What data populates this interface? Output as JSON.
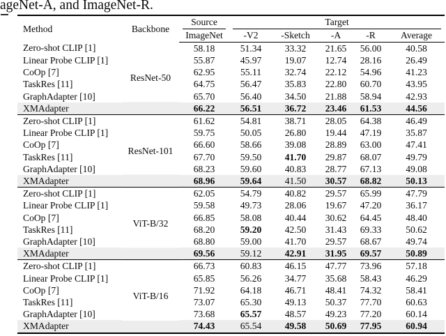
{
  "caption": "ageNet-A, and ImageNet-R.",
  "table": {
    "highlight_color": "#ededed",
    "headers": {
      "method": "Method",
      "backbone": "Backbone",
      "source": "Source",
      "target": "Target",
      "source_sub": [
        "ImageNet"
      ],
      "target_sub": [
        "-V2",
        "-Sketch",
        "-A",
        "-R",
        "Average"
      ]
    },
    "groups": [
      {
        "backbone": "ResNet-50",
        "rows": [
          {
            "method": "Zero-shot CLIP [1]",
            "values": [
              "58.18",
              "51.34",
              "33.32",
              "21.65",
              "56.00",
              "40.58"
            ],
            "bold": [
              false,
              false,
              false,
              false,
              false,
              false
            ],
            "highlight": false
          },
          {
            "method": "Linear Probe CLIP [1]",
            "values": [
              "55.87",
              "45.97",
              "19.07",
              "12.74",
              "28.16",
              "26.49"
            ],
            "bold": [
              false,
              false,
              false,
              false,
              false,
              false
            ],
            "highlight": false
          },
          {
            "method": "CoOp [7]",
            "values": [
              "62.95",
              "55.11",
              "32.74",
              "22.12",
              "54.96",
              "41.23"
            ],
            "bold": [
              false,
              false,
              false,
              false,
              false,
              false
            ],
            "highlight": false
          },
          {
            "method": "TaskRes [11]",
            "values": [
              "64.75",
              "56.47",
              "35.83",
              "22.80",
              "60.70",
              "43.95"
            ],
            "bold": [
              false,
              false,
              false,
              false,
              false,
              false
            ],
            "highlight": false
          },
          {
            "method": "GraphAdapter [10]",
            "values": [
              "65.70",
              "56.40",
              "34.50",
              "21.88",
              "58.94",
              "42.93"
            ],
            "bold": [
              false,
              false,
              false,
              false,
              false,
              false
            ],
            "highlight": false
          },
          {
            "method": "XMAdapter",
            "values": [
              "66.22",
              "56.51",
              "36.72",
              "23.46",
              "61.53",
              "44.56"
            ],
            "bold": [
              true,
              true,
              true,
              true,
              true,
              true
            ],
            "highlight": true
          }
        ]
      },
      {
        "backbone": "ResNet-101",
        "rows": [
          {
            "method": "Zero-shot CLIP [1]",
            "values": [
              "61.62",
              "54.81",
              "38.71",
              "28.05",
              "64.38",
              "46.49"
            ],
            "bold": [
              false,
              false,
              false,
              false,
              false,
              false
            ],
            "highlight": false
          },
          {
            "method": "Linear Probe CLIP [1]",
            "values": [
              "59.75",
              "50.05",
              "26.80",
              "19.44",
              "47.19",
              "35.87"
            ],
            "bold": [
              false,
              false,
              false,
              false,
              false,
              false
            ],
            "highlight": false
          },
          {
            "method": "CoOp [7]",
            "values": [
              "66.60",
              "58.66",
              "39.08",
              "28.89",
              "63.00",
              "47.41"
            ],
            "bold": [
              false,
              false,
              false,
              false,
              false,
              false
            ],
            "highlight": false
          },
          {
            "method": "TaskRes [11]",
            "values": [
              "67.70",
              "59.50",
              "41.70",
              "29.87",
              "68.07",
              "49.79"
            ],
            "bold": [
              false,
              false,
              true,
              false,
              false,
              false
            ],
            "highlight": false
          },
          {
            "method": "GraphAdapter [10]",
            "values": [
              "68.23",
              "59.60",
              "40.83",
              "28.77",
              "67.13",
              "49.08"
            ],
            "bold": [
              false,
              false,
              false,
              false,
              false,
              false
            ],
            "highlight": false
          },
          {
            "method": "XMAdapter",
            "values": [
              "68.96",
              "59.64",
              "41.50",
              "30.57",
              "68.82",
              "50.13"
            ],
            "bold": [
              true,
              true,
              false,
              true,
              true,
              true
            ],
            "highlight": true
          }
        ]
      },
      {
        "backbone": "ViT-B/32",
        "rows": [
          {
            "method": "Zero-shot CLIP [1]",
            "values": [
              "62.05",
              "54.79",
              "40.82",
              "29.57",
              "65.99",
              "47.79"
            ],
            "bold": [
              false,
              false,
              false,
              false,
              false,
              false
            ],
            "highlight": false
          },
          {
            "method": "Linear Probe CLIP [1]",
            "values": [
              "59.58",
              "49.73",
              "28.06",
              "19.67",
              "47.20",
              "36.17"
            ],
            "bold": [
              false,
              false,
              false,
              false,
              false,
              false
            ],
            "highlight": false
          },
          {
            "method": "CoOp [7]",
            "values": [
              "66.85",
              "58.08",
              "40.44",
              "30.62",
              "64.45",
              "48.40"
            ],
            "bold": [
              false,
              false,
              false,
              false,
              false,
              false
            ],
            "highlight": false
          },
          {
            "method": "TaskRes [11]",
            "values": [
              "68.20",
              "59.20",
              "42.50",
              "31.43",
              "69.33",
              "50.62"
            ],
            "bold": [
              false,
              true,
              false,
              false,
              false,
              false
            ],
            "highlight": false
          },
          {
            "method": "GraphAdapter [10]",
            "values": [
              "68.80",
              "59.00",
              "41.70",
              "29.57",
              "68.67",
              "49.74"
            ],
            "bold": [
              false,
              false,
              false,
              false,
              false,
              false
            ],
            "highlight": false
          },
          {
            "method": "XMAdapter",
            "values": [
              "69.56",
              "59.12",
              "42.91",
              "31.95",
              "69.57",
              "50.89"
            ],
            "bold": [
              true,
              false,
              true,
              true,
              true,
              true
            ],
            "highlight": true
          }
        ]
      },
      {
        "backbone": "ViT-B/16",
        "rows": [
          {
            "method": "Zero-shot CLIP [1]",
            "values": [
              "66.73",
              "60.83",
              "46.15",
              "47.77",
              "73.96",
              "57.18"
            ],
            "bold": [
              false,
              false,
              false,
              false,
              false,
              false
            ],
            "highlight": false
          },
          {
            "method": "Linear Probe CLIP [1]",
            "values": [
              "65.85",
              "56.26",
              "34.77",
              "35.68",
              "58.43",
              "46.29"
            ],
            "bold": [
              false,
              false,
              false,
              false,
              false,
              false
            ],
            "highlight": false
          },
          {
            "method": "CoOp [7]",
            "values": [
              "71.92",
              "64.18",
              "46.71",
              "48.41",
              "74.32",
              "58.41"
            ],
            "bold": [
              false,
              false,
              false,
              false,
              false,
              false
            ],
            "highlight": false
          },
          {
            "method": "TaskRes [11]",
            "values": [
              "73.07",
              "65.30",
              "49.13",
              "50.37",
              "77.70",
              "60.63"
            ],
            "bold": [
              false,
              false,
              false,
              false,
              false,
              false
            ],
            "highlight": false
          },
          {
            "method": "GraphAdapter [10]",
            "values": [
              "73.68",
              "65.57",
              "48.57",
              "49.23",
              "77.20",
              "60.14"
            ],
            "bold": [
              false,
              true,
              false,
              false,
              false,
              false
            ],
            "highlight": false
          },
          {
            "method": "XMAdapter",
            "values": [
              "74.43",
              "65.54",
              "49.58",
              "50.69",
              "77.95",
              "60.94"
            ],
            "bold": [
              true,
              false,
              true,
              true,
              true,
              true
            ],
            "highlight": true
          }
        ]
      }
    ]
  }
}
